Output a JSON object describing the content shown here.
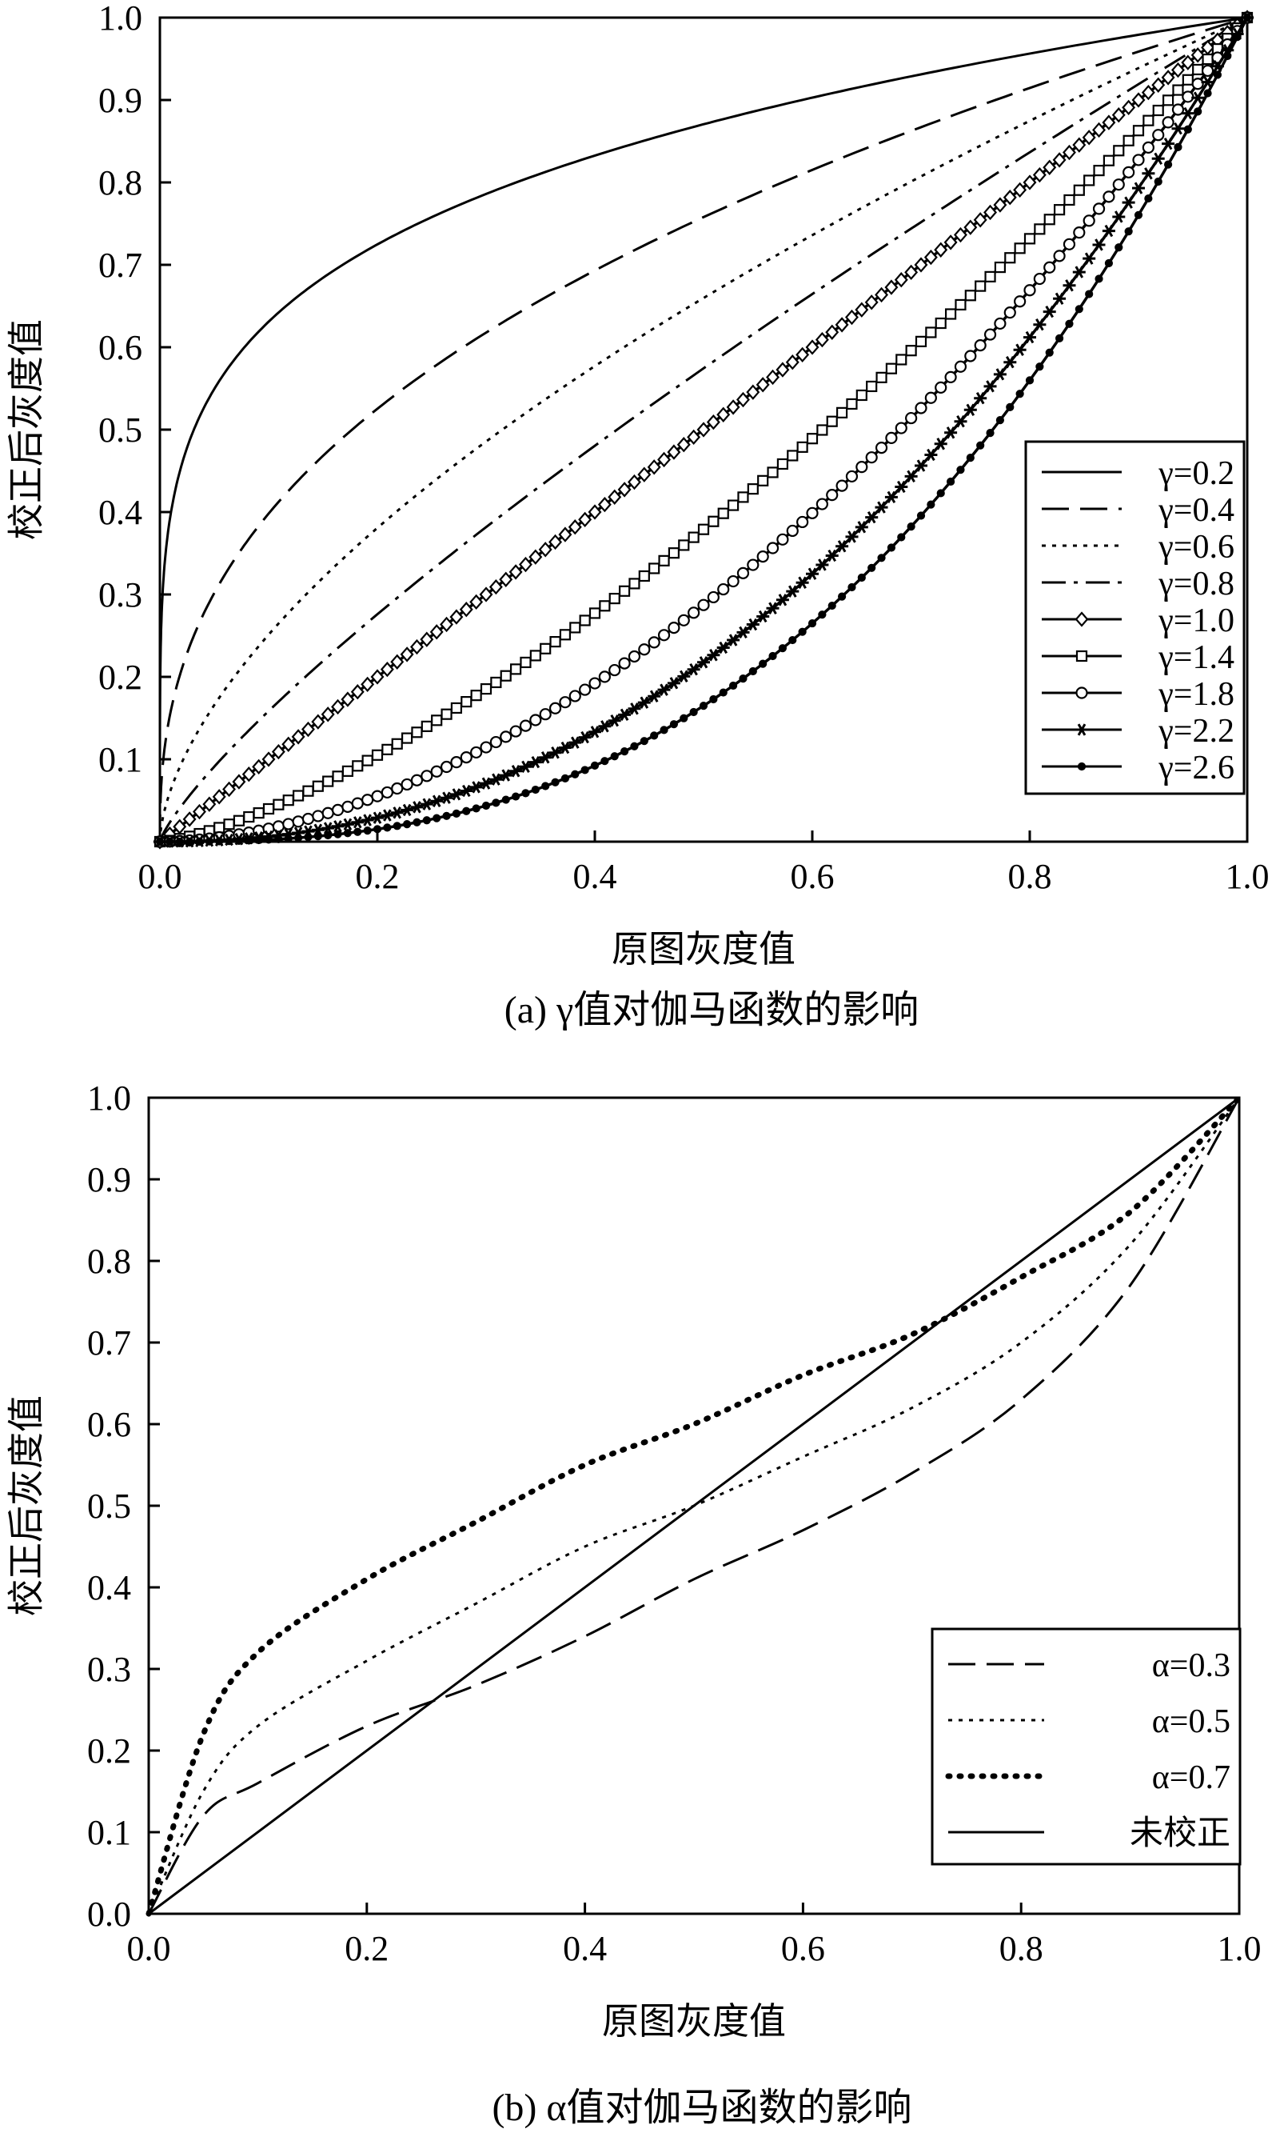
{
  "chart_data": [
    {
      "type": "line",
      "caption": "(a) γ值对伽马函数的影响",
      "xlabel": "原图灰度值",
      "ylabel": "校正后灰度值",
      "xlim": [
        0,
        1
      ],
      "ylim": [
        0,
        1
      ],
      "xticks": [
        "0.0",
        "0.2",
        "0.4",
        "0.6",
        "0.8",
        "1.0"
      ],
      "yticks": [
        "0.1",
        "0.2",
        "0.3",
        "0.4",
        "0.5",
        "0.6",
        "0.7",
        "0.8",
        "0.9",
        "1.0"
      ],
      "legend_position": "bottom-right",
      "formula": "y = x^γ",
      "series": [
        {
          "name": "γ=0.2",
          "param": 0.2,
          "style": "solid",
          "marker": "none",
          "x": [
            0,
            0.01,
            0.1,
            0.2,
            0.3,
            0.4,
            0.5,
            0.6,
            0.7,
            0.8,
            0.9,
            1.0
          ],
          "values": [
            0,
            0.4,
            0.63,
            0.72,
            0.79,
            0.83,
            0.87,
            0.9,
            0.93,
            0.96,
            0.98,
            1.0
          ]
        },
        {
          "name": "γ=0.4",
          "param": 0.4,
          "style": "dashed",
          "marker": "none",
          "x": [
            0,
            0.1,
            0.2,
            0.3,
            0.4,
            0.5,
            0.6,
            0.7,
            0.8,
            0.9,
            1.0
          ],
          "values": [
            0,
            0.4,
            0.53,
            0.62,
            0.69,
            0.76,
            0.82,
            0.87,
            0.91,
            0.96,
            1.0
          ]
        },
        {
          "name": "γ=0.6",
          "param": 0.6,
          "style": "dotted",
          "marker": "none",
          "x": [
            0,
            0.1,
            0.2,
            0.3,
            0.4,
            0.5,
            0.6,
            0.7,
            0.8,
            0.9,
            1.0
          ],
          "values": [
            0,
            0.25,
            0.38,
            0.49,
            0.58,
            0.66,
            0.74,
            0.81,
            0.87,
            0.94,
            1.0
          ]
        },
        {
          "name": "γ=0.8",
          "param": 0.8,
          "style": "dashdot",
          "marker": "none",
          "x": [
            0,
            0.1,
            0.2,
            0.3,
            0.4,
            0.5,
            0.6,
            0.7,
            0.8,
            0.9,
            1.0
          ],
          "values": [
            0,
            0.16,
            0.28,
            0.38,
            0.48,
            0.57,
            0.66,
            0.75,
            0.84,
            0.92,
            1.0
          ]
        },
        {
          "name": "γ=1.0",
          "param": 1.0,
          "style": "solid",
          "marker": "diamond",
          "x": [
            0,
            0.1,
            0.2,
            0.3,
            0.4,
            0.5,
            0.6,
            0.7,
            0.8,
            0.9,
            1.0
          ],
          "values": [
            0,
            0.1,
            0.2,
            0.3,
            0.4,
            0.5,
            0.6,
            0.7,
            0.8,
            0.9,
            1.0
          ]
        },
        {
          "name": "γ=1.4",
          "param": 1.4,
          "style": "solid",
          "marker": "square",
          "x": [
            0,
            0.1,
            0.2,
            0.3,
            0.4,
            0.5,
            0.6,
            0.7,
            0.8,
            0.9,
            1.0
          ],
          "values": [
            0,
            0.04,
            0.11,
            0.19,
            0.28,
            0.38,
            0.49,
            0.61,
            0.73,
            0.86,
            1.0
          ]
        },
        {
          "name": "γ=1.8",
          "param": 1.8,
          "style": "solid",
          "marker": "circle",
          "x": [
            0,
            0.1,
            0.2,
            0.3,
            0.4,
            0.5,
            0.6,
            0.7,
            0.8,
            0.9,
            1.0
          ],
          "values": [
            0,
            0.02,
            0.06,
            0.11,
            0.19,
            0.29,
            0.4,
            0.53,
            0.67,
            0.83,
            1.0
          ]
        },
        {
          "name": "γ=2.2",
          "param": 2.2,
          "style": "solid",
          "marker": "star",
          "x": [
            0,
            0.1,
            0.2,
            0.3,
            0.4,
            0.5,
            0.6,
            0.7,
            0.8,
            0.9,
            1.0
          ],
          "values": [
            0,
            0.01,
            0.03,
            0.07,
            0.13,
            0.22,
            0.32,
            0.46,
            0.61,
            0.79,
            1.0
          ]
        },
        {
          "name": "γ=2.6",
          "param": 2.6,
          "style": "solid",
          "marker": "dot",
          "x": [
            0,
            0.1,
            0.2,
            0.3,
            0.4,
            0.5,
            0.6,
            0.7,
            0.8,
            0.9,
            1.0
          ],
          "values": [
            0,
            0.0,
            0.02,
            0.04,
            0.09,
            0.16,
            0.26,
            0.4,
            0.56,
            0.76,
            1.0
          ]
        }
      ]
    },
    {
      "type": "line",
      "caption": "(b) α值对伽马函数的影响",
      "xlabel": "原图灰度值",
      "ylabel": "校正后灰度值",
      "xlim": [
        0,
        1
      ],
      "ylim": [
        0,
        1
      ],
      "xticks": [
        "0.0",
        "0.2",
        "0.4",
        "0.6",
        "0.8",
        "1.0"
      ],
      "yticks": [
        "0.0",
        "0.1",
        "0.2",
        "0.3",
        "0.4",
        "0.5",
        "0.6",
        "0.7",
        "0.8",
        "0.9",
        "1.0"
      ],
      "legend_position": "bottom-right",
      "series": [
        {
          "name": "α=0.3",
          "param": 0.3,
          "style": "dashed",
          "x": [
            0,
            0.05,
            0.1,
            0.2,
            0.3,
            0.4,
            0.5,
            0.6,
            0.7,
            0.8,
            0.9,
            1.0
          ],
          "values": [
            0,
            0.12,
            0.16,
            0.23,
            0.28,
            0.34,
            0.41,
            0.47,
            0.54,
            0.63,
            0.77,
            1.0
          ]
        },
        {
          "name": "α=0.5",
          "param": 0.5,
          "style": "dotted",
          "x": [
            0,
            0.05,
            0.1,
            0.2,
            0.3,
            0.4,
            0.5,
            0.6,
            0.7,
            0.8,
            0.9,
            1.0
          ],
          "values": [
            0,
            0.15,
            0.23,
            0.31,
            0.38,
            0.45,
            0.5,
            0.56,
            0.62,
            0.7,
            0.82,
            1.0
          ]
        },
        {
          "name": "α=0.7",
          "param": 0.7,
          "style": "bold-dotted",
          "x": [
            0,
            0.05,
            0.1,
            0.2,
            0.3,
            0.4,
            0.5,
            0.6,
            0.7,
            0.8,
            0.9,
            1.0
          ],
          "values": [
            0,
            0.22,
            0.32,
            0.41,
            0.48,
            0.55,
            0.6,
            0.66,
            0.71,
            0.78,
            0.86,
            1.0
          ]
        },
        {
          "name": "未校正",
          "param": null,
          "style": "solid",
          "x": [
            0,
            1.0
          ],
          "values": [
            0,
            1.0
          ]
        }
      ]
    }
  ]
}
